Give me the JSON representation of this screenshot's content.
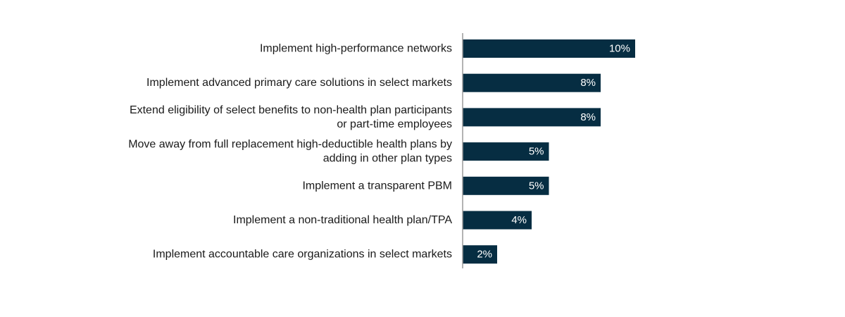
{
  "chart_data": {
    "type": "bar",
    "orientation": "horizontal",
    "categories": [
      [
        "Implement high-performance networks"
      ],
      [
        "Implement advanced primary care solutions in select markets"
      ],
      [
        "Extend eligibility of select benefits to non-health plan participants",
        "or part-time employees"
      ],
      [
        "Move away from full replacement high-deductible health plans by",
        "adding in other plan types"
      ],
      [
        "Implement a transparent PBM"
      ],
      [
        "Implement a non-traditional health plan/TPA"
      ],
      [
        "Implement accountable care organizations in select markets"
      ]
    ],
    "values": [
      10,
      8,
      8,
      5,
      5,
      4,
      2
    ],
    "value_labels": [
      "10%",
      "8%",
      "8%",
      "5%",
      "5%",
      "4%",
      "2%"
    ],
    "unit": "%",
    "title": "",
    "xlabel": "",
    "ylabel": "",
    "xlim": [
      0,
      22
    ],
    "grid": false,
    "legend": "none",
    "colors": {
      "bar": "#062d42",
      "axis": "#9a9a9a",
      "label": "#1a1a1a",
      "value_text": "#ffffff"
    }
  }
}
